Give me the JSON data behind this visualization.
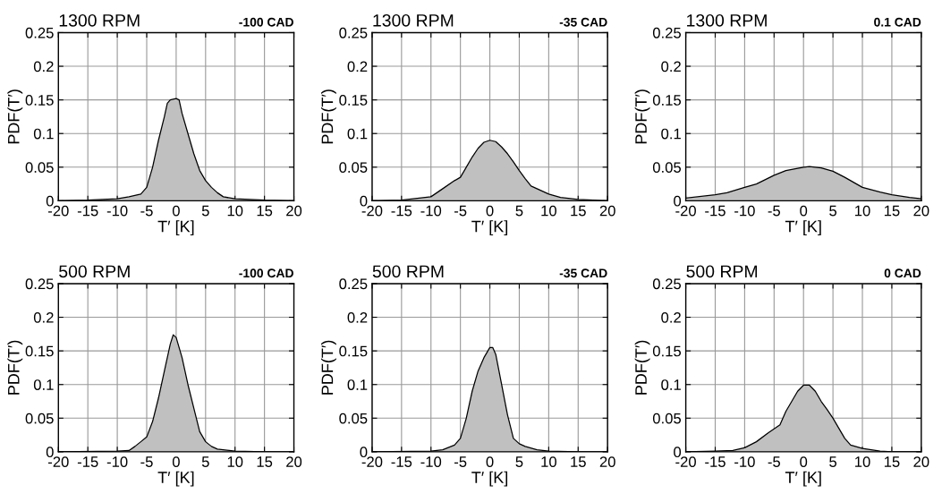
{
  "chart_data": [
    {
      "type": "area",
      "title": "1300 RPM",
      "subtitle": "-100 CAD",
      "xlabel": "T′ [K]",
      "ylabel": "PDF(T′)",
      "xlim": [
        -20,
        20
      ],
      "xticks": [
        -20,
        -15,
        -10,
        -5,
        0,
        5,
        10,
        15,
        20
      ],
      "ylim": [
        0,
        0.25
      ],
      "yticks": [
        0,
        0.05,
        0.1,
        0.15,
        0.2,
        0.25
      ],
      "grid": true,
      "line_style": "solid",
      "series": [
        {
          "color": "#c0c0c0",
          "x": [
            -20,
            -15,
            -10,
            -8,
            -6,
            -5,
            -4,
            -3,
            -2,
            -1.5,
            -1,
            0,
            0.5,
            1,
            2,
            3,
            4,
            5,
            6,
            7,
            8,
            10,
            15,
            20
          ],
          "values": [
            0,
            0.001,
            0.003,
            0.006,
            0.01,
            0.02,
            0.05,
            0.09,
            0.125,
            0.145,
            0.15,
            0.152,
            0.15,
            0.13,
            0.1,
            0.07,
            0.045,
            0.03,
            0.02,
            0.012,
            0.006,
            0.003,
            0.001,
            0
          ]
        }
      ]
    },
    {
      "type": "area",
      "title": "1300 RPM",
      "subtitle": "-35 CAD",
      "xlabel": "T′ [K]",
      "ylabel": "PDF(T′)",
      "xlim": [
        -20,
        20
      ],
      "xticks": [
        -20,
        -15,
        -10,
        -5,
        0,
        5,
        10,
        15,
        20
      ],
      "ylim": [
        0,
        0.25
      ],
      "yticks": [
        0,
        0.05,
        0.1,
        0.15,
        0.2,
        0.25
      ],
      "grid": true,
      "line_style": "solid",
      "series": [
        {
          "color": "#c0c0c0",
          "x": [
            -20,
            -15,
            -10,
            -8,
            -6,
            -5,
            -4,
            -3,
            -2,
            -1,
            0,
            1,
            2,
            3,
            4,
            5,
            6,
            7,
            8,
            10,
            12,
            15,
            20
          ],
          "values": [
            0,
            0.001,
            0.006,
            0.018,
            0.03,
            0.035,
            0.05,
            0.065,
            0.078,
            0.087,
            0.09,
            0.088,
            0.08,
            0.07,
            0.058,
            0.045,
            0.033,
            0.022,
            0.018,
            0.01,
            0.005,
            0.002,
            0
          ]
        }
      ]
    },
    {
      "type": "area",
      "title": "1300 RPM",
      "subtitle": "0.1 CAD",
      "xlabel": "T′ [K]",
      "ylabel": "PDF(T′)",
      "xlim": [
        -20,
        20
      ],
      "xticks": [
        -20,
        -15,
        -10,
        -5,
        0,
        5,
        10,
        15,
        20
      ],
      "ylim": [
        0,
        0.25
      ],
      "yticks": [
        0,
        0.05,
        0.1,
        0.15,
        0.2,
        0.25
      ],
      "grid": true,
      "line_style": "solid",
      "series": [
        {
          "color": "#c0c0c0",
          "x": [
            -20,
            -15,
            -13,
            -10,
            -8,
            -5,
            -3,
            0,
            1,
            3,
            5,
            7,
            8,
            10,
            13,
            15,
            18,
            20
          ],
          "values": [
            0.004,
            0.009,
            0.012,
            0.02,
            0.025,
            0.038,
            0.045,
            0.05,
            0.051,
            0.049,
            0.044,
            0.035,
            0.03,
            0.02,
            0.013,
            0.009,
            0.005,
            0.003
          ]
        }
      ]
    },
    {
      "type": "area",
      "title": "500 RPM",
      "subtitle": "-100 CAD",
      "xlabel": "T′ [K]",
      "ylabel": "PDF(T′)",
      "xlim": [
        -20,
        20
      ],
      "xticks": [
        -20,
        -15,
        -10,
        -5,
        0,
        5,
        10,
        15,
        20
      ],
      "ylim": [
        0,
        0.25
      ],
      "yticks": [
        0,
        0.05,
        0.1,
        0.15,
        0.2,
        0.25
      ],
      "grid": true,
      "line_style": "solid",
      "series": [
        {
          "color": "#c0c0c0",
          "x": [
            -20,
            -10,
            -8,
            -7,
            -6,
            -5,
            -4,
            -3,
            -2,
            -1,
            -0.5,
            0,
            1,
            2,
            3,
            4,
            5,
            6,
            7,
            10,
            15,
            20
          ],
          "values": [
            0,
            0.001,
            0.002,
            0.008,
            0.015,
            0.022,
            0.045,
            0.08,
            0.12,
            0.16,
            0.174,
            0.17,
            0.14,
            0.1,
            0.065,
            0.03,
            0.015,
            0.008,
            0.004,
            0.001,
            0,
            0
          ]
        }
      ]
    },
    {
      "type": "area",
      "title": "500 RPM",
      "subtitle": "-35 CAD",
      "xlabel": "T′ [K]",
      "ylabel": "PDF(T′)",
      "xlim": [
        -20,
        20
      ],
      "xticks": [
        -20,
        -15,
        -10,
        -5,
        0,
        5,
        10,
        15,
        20
      ],
      "ylim": [
        0,
        0.25
      ],
      "yticks": [
        0,
        0.05,
        0.1,
        0.15,
        0.2,
        0.25
      ],
      "grid": true,
      "line_style": "solid",
      "series": [
        {
          "color": "#c0c0c0",
          "x": [
            -20,
            -10,
            -8,
            -6,
            -5,
            -4,
            -3,
            -2,
            -1,
            0,
            0.5,
            1,
            2,
            3,
            4,
            5,
            6,
            8,
            10,
            15,
            20
          ],
          "values": [
            0,
            0.001,
            0.003,
            0.01,
            0.02,
            0.05,
            0.09,
            0.12,
            0.14,
            0.155,
            0.155,
            0.145,
            0.1,
            0.055,
            0.02,
            0.012,
            0.008,
            0.003,
            0.001,
            0,
            0
          ]
        }
      ]
    },
    {
      "type": "area",
      "title": "500 RPM",
      "subtitle": "0 CAD",
      "xlabel": "T′ [K]",
      "ylabel": "PDF(T′)",
      "xlim": [
        -20,
        20
      ],
      "xticks": [
        -20,
        -15,
        -10,
        -5,
        0,
        5,
        10,
        15,
        20
      ],
      "ylim": [
        0,
        0.25
      ],
      "yticks": [
        0,
        0.05,
        0.1,
        0.15,
        0.2,
        0.25
      ],
      "grid": true,
      "line_style": "solid",
      "series": [
        {
          "color": "#c0c0c0",
          "x": [
            -20,
            -15,
            -12,
            -10,
            -8,
            -6,
            -4,
            -3,
            -2,
            -1,
            0,
            1,
            2,
            3,
            4,
            5,
            6,
            7,
            8,
            10,
            13,
            15,
            20
          ],
          "values": [
            0,
            0.001,
            0.002,
            0.006,
            0.015,
            0.028,
            0.04,
            0.06,
            0.075,
            0.09,
            0.099,
            0.099,
            0.09,
            0.075,
            0.063,
            0.05,
            0.035,
            0.02,
            0.01,
            0.005,
            0.001,
            0,
            0
          ]
        }
      ]
    }
  ]
}
